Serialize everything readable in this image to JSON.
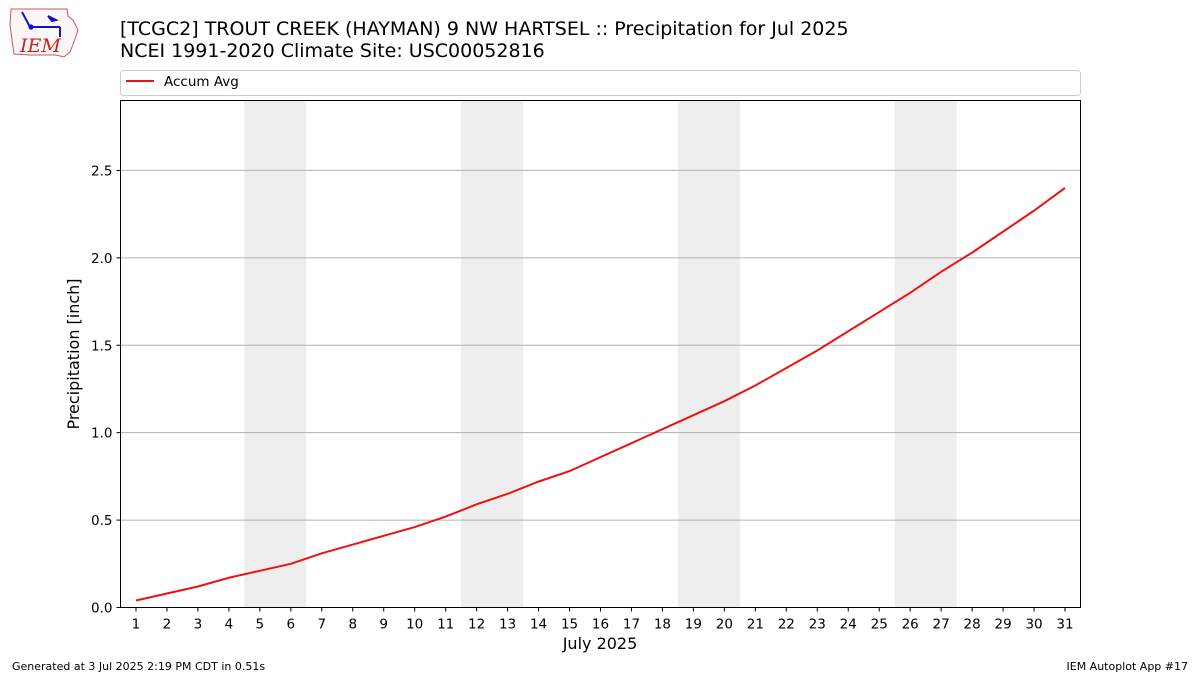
{
  "header": {
    "title_line1": "[TCGC2] TROUT CREEK (HAYMAN) 9 NW HARTSEL :: Precipitation for Jul 2025",
    "title_line2": "NCEI 1991-2020 Climate Site: USC00052816"
  },
  "logo": {
    "text": "IEM",
    "primary_color": "#cc2222",
    "accent_color": "#1111cc"
  },
  "footer": {
    "generated": "Generated at 3 Jul 2025 2:19 PM CDT in 0.51s",
    "app": "IEM Autoplot App #17"
  },
  "chart_data": {
    "type": "line",
    "xlabel": "July 2025",
    "ylabel": "Precipitation [inch]",
    "x": [
      1,
      2,
      3,
      4,
      5,
      6,
      7,
      8,
      9,
      10,
      11,
      12,
      13,
      14,
      15,
      16,
      17,
      18,
      19,
      20,
      21,
      22,
      23,
      24,
      25,
      26,
      27,
      28,
      29,
      30,
      31
    ],
    "xlim": [
      0.5,
      31.5
    ],
    "ylim": [
      0,
      2.9
    ],
    "yticks": [
      0.0,
      0.5,
      1.0,
      1.5,
      2.0,
      2.5
    ],
    "ytick_labels": [
      "0.0",
      "0.5",
      "1.0",
      "1.5",
      "2.0",
      "2.5"
    ],
    "grid": "horizontal",
    "legend_position": "top",
    "weekend_shading": [
      [
        4.5,
        6.5
      ],
      [
        11.5,
        13.5
      ],
      [
        18.5,
        20.5
      ],
      [
        25.5,
        27.5
      ]
    ],
    "shade_color": "#eeeeee",
    "series": [
      {
        "name": "Accum Avg",
        "color": "#ee1111",
        "values": [
          0.04,
          0.08,
          0.12,
          0.17,
          0.21,
          0.25,
          0.31,
          0.36,
          0.41,
          0.46,
          0.52,
          0.59,
          0.65,
          0.72,
          0.78,
          0.86,
          0.94,
          1.02,
          1.1,
          1.18,
          1.27,
          1.37,
          1.47,
          1.58,
          1.69,
          1.8,
          1.92,
          2.03,
          2.15,
          2.27,
          2.4
        ]
      }
    ]
  }
}
